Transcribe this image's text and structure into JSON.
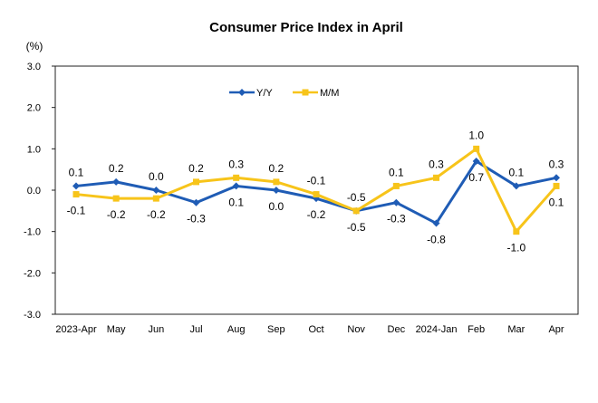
{
  "chart_data": {
    "type": "line",
    "title": "Consumer Price Index in April",
    "ylabel": "(%)",
    "xlabel": "",
    "categories": [
      "2023-Apr",
      "May",
      "Jun",
      "Jul",
      "Aug",
      "Sep",
      "Oct",
      "Nov",
      "Dec",
      "2024-Jan",
      "Feb",
      "Mar",
      "Apr"
    ],
    "ylim": [
      -3.0,
      3.0
    ],
    "yticks": [
      "3.0",
      "2.0",
      "1.0",
      "0.0",
      "-1.0",
      "-2.0",
      "-3.0"
    ],
    "legend_position": "top-center",
    "grid": false,
    "series": [
      {
        "name": "Y/Y",
        "color": "#1f5cb5",
        "marker": "diamond",
        "values": [
          0.1,
          0.2,
          0.0,
          -0.3,
          0.1,
          0.0,
          -0.2,
          -0.5,
          -0.3,
          -0.8,
          0.7,
          0.1,
          0.3
        ],
        "labels": [
          "0.1",
          "0.2",
          "0.0",
          "-0.3",
          "0.1",
          "0.0",
          "-0.2",
          "-0.5",
          "-0.3",
          "-0.8",
          "0.7",
          "0.1",
          "0.3"
        ]
      },
      {
        "name": "M/M",
        "color": "#f7c41a",
        "marker": "square",
        "values": [
          -0.1,
          -0.2,
          -0.2,
          0.2,
          0.3,
          0.2,
          -0.1,
          -0.5,
          0.1,
          0.3,
          1.0,
          -1.0,
          0.1
        ],
        "labels": [
          "-0.1",
          "-0.2",
          "-0.2",
          "0.2",
          "0.3",
          "0.2",
          "-0.1",
          "-0.5",
          "0.1",
          "0.3",
          "1.0",
          "-1.0",
          "0.1"
        ]
      }
    ]
  }
}
